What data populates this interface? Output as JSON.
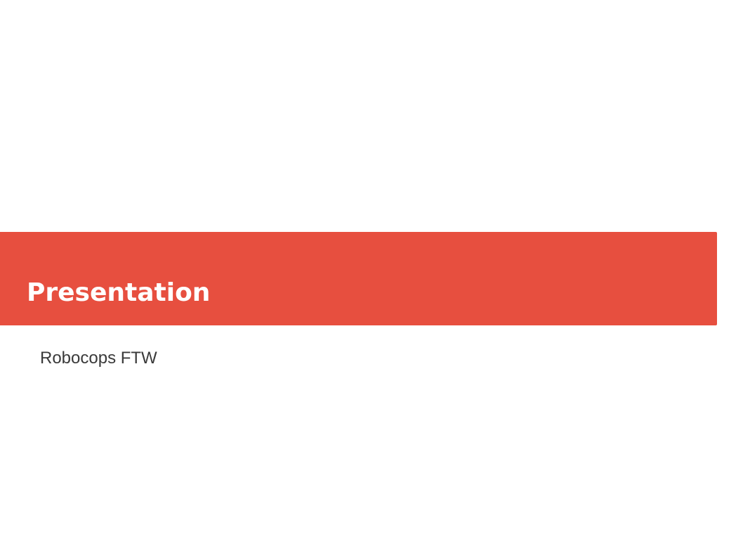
{
  "slide": {
    "title": "Presentation",
    "subtitle": "Robocops FTW"
  },
  "colors": {
    "accent": "#e74f3f",
    "title_text": "#ffffff",
    "subtitle_text": "#3a3a3a",
    "background": "#ffffff"
  }
}
